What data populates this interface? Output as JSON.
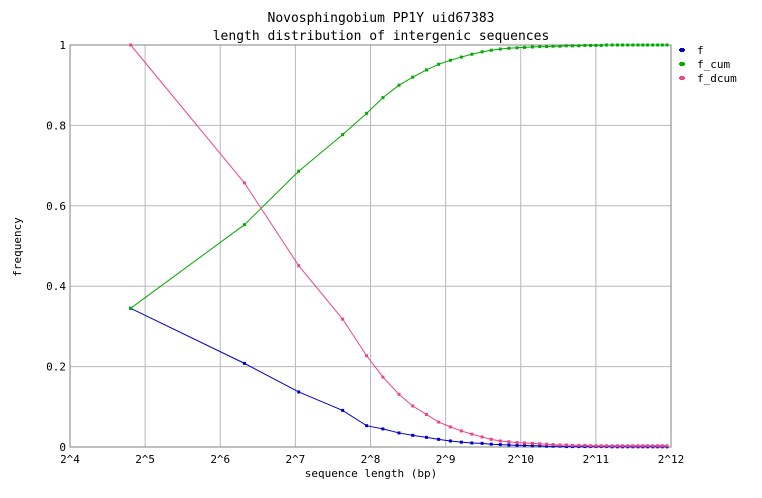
{
  "chart_data": {
    "type": "line",
    "title": "Novosphingobium PP1Y uid67383",
    "subtitle": "length distribution of intergenic sequences",
    "xlabel": "sequence length (bp)",
    "ylabel": "frequency",
    "x_scale": "log2",
    "xlim": [
      16,
      4096
    ],
    "ylim": [
      0,
      1
    ],
    "grid": true,
    "legend_position": "right",
    "x_ticks": [
      {
        "value": 16,
        "label": "2^4"
      },
      {
        "value": 32,
        "label": "2^5"
      },
      {
        "value": 64,
        "label": "2^6"
      },
      {
        "value": 128,
        "label": "2^7"
      },
      {
        "value": 256,
        "label": "2^8"
      },
      {
        "value": 512,
        "label": "2^9"
      },
      {
        "value": 1024,
        "label": "2^10"
      },
      {
        "value": 2048,
        "label": "2^11"
      },
      {
        "value": 4096,
        "label": "2^12"
      }
    ],
    "y_ticks": [
      {
        "value": 0,
        "label": "0"
      },
      {
        "value": 0.2,
        "label": "0.2"
      },
      {
        "value": 0.4,
        "label": "0.4"
      },
      {
        "value": 0.6,
        "label": "0.6"
      },
      {
        "value": 0.8,
        "label": "0.8"
      },
      {
        "value": 1,
        "label": "1"
      }
    ],
    "series": [
      {
        "name": "f",
        "color": "#0000cc",
        "points": [
          [
            28,
            0.345
          ],
          [
            80,
            0.208
          ],
          [
            132,
            0.137
          ],
          [
            198,
            0.091
          ],
          [
            247,
            0.053
          ],
          [
            287,
            0.045
          ],
          [
            333,
            0.035
          ],
          [
            378,
            0.029
          ],
          [
            429,
            0.024
          ],
          [
            480,
            0.019
          ],
          [
            535,
            0.015
          ],
          [
            592,
            0.012
          ],
          [
            652,
            0.01
          ],
          [
            717,
            0.009
          ],
          [
            780,
            0.007
          ],
          [
            848,
            0.006
          ],
          [
            918,
            0.005
          ],
          [
            990,
            0.004
          ],
          [
            1060,
            0.004
          ],
          [
            1140,
            0.003
          ],
          [
            1220,
            0.003
          ],
          [
            1300,
            0.002
          ],
          [
            1380,
            0.002
          ],
          [
            1470,
            0.002
          ],
          [
            1560,
            0.001
          ],
          [
            1650,
            0.001
          ],
          [
            1750,
            0.001
          ],
          [
            1850,
            0.001
          ],
          [
            1950,
            0.001
          ],
          [
            2050,
            0.001
          ],
          [
            2150,
            0.001
          ],
          [
            2260,
            0.001
          ],
          [
            2380,
            0.0005
          ],
          [
            2500,
            0.0005
          ],
          [
            2620,
            0.0005
          ],
          [
            2750,
            0.0005
          ],
          [
            2880,
            0.0005
          ],
          [
            3020,
            0.0005
          ],
          [
            3160,
            0.0005
          ],
          [
            3300,
            0.0005
          ],
          [
            3460,
            0.0005
          ],
          [
            3620,
            0.0005
          ],
          [
            3780,
            0.0005
          ],
          [
            3950,
            0.0005
          ]
        ]
      },
      {
        "name": "f_cum",
        "color": "#00aa00",
        "points": [
          [
            28,
            0.345
          ],
          [
            80,
            0.553
          ],
          [
            132,
            0.686
          ],
          [
            198,
            0.777
          ],
          [
            247,
            0.83
          ],
          [
            287,
            0.869
          ],
          [
            333,
            0.9
          ],
          [
            378,
            0.92
          ],
          [
            429,
            0.938
          ],
          [
            480,
            0.952
          ],
          [
            535,
            0.962
          ],
          [
            592,
            0.97
          ],
          [
            652,
            0.977
          ],
          [
            717,
            0.983
          ],
          [
            780,
            0.987
          ],
          [
            848,
            0.99
          ],
          [
            918,
            0.992
          ],
          [
            990,
            0.993
          ],
          [
            1060,
            0.994
          ],
          [
            1140,
            0.995
          ],
          [
            1220,
            0.996
          ],
          [
            1300,
            0.996
          ],
          [
            1380,
            0.997
          ],
          [
            1470,
            0.997
          ],
          [
            1560,
            0.998
          ],
          [
            1650,
            0.998
          ],
          [
            1750,
            0.998
          ],
          [
            1850,
            0.999
          ],
          [
            1950,
            0.999
          ],
          [
            2050,
            0.999
          ],
          [
            2150,
            0.999
          ],
          [
            2260,
            1.0
          ],
          [
            2380,
            1.0
          ],
          [
            2500,
            1.0
          ],
          [
            2620,
            1.0
          ],
          [
            2750,
            1.0
          ],
          [
            2880,
            1.0
          ],
          [
            3020,
            1.0
          ],
          [
            3160,
            1.0
          ],
          [
            3300,
            1.0
          ],
          [
            3460,
            1.0
          ],
          [
            3620,
            1.0
          ],
          [
            3780,
            1.0
          ],
          [
            3950,
            1.0
          ]
        ]
      },
      {
        "name": "f_dcum",
        "color": "#ee4488",
        "points": [
          [
            28,
            1.0
          ],
          [
            80,
            0.657
          ],
          [
            132,
            0.451
          ],
          [
            198,
            0.318
          ],
          [
            247,
            0.227
          ],
          [
            287,
            0.174
          ],
          [
            333,
            0.131
          ],
          [
            378,
            0.102
          ],
          [
            429,
            0.081
          ],
          [
            480,
            0.062
          ],
          [
            535,
            0.05
          ],
          [
            592,
            0.04
          ],
          [
            652,
            0.032
          ],
          [
            717,
            0.025
          ],
          [
            780,
            0.019
          ],
          [
            848,
            0.015
          ],
          [
            918,
            0.013
          ],
          [
            990,
            0.011
          ],
          [
            1060,
            0.01
          ],
          [
            1140,
            0.009
          ],
          [
            1220,
            0.008
          ],
          [
            1300,
            0.007
          ],
          [
            1380,
            0.006
          ],
          [
            1470,
            0.005
          ],
          [
            1560,
            0.005
          ],
          [
            1650,
            0.004
          ],
          [
            1750,
            0.004
          ],
          [
            1850,
            0.004
          ],
          [
            1950,
            0.003
          ],
          [
            2050,
            0.003
          ],
          [
            2150,
            0.003
          ],
          [
            2260,
            0.003
          ],
          [
            2380,
            0.003
          ],
          [
            2500,
            0.003
          ],
          [
            2620,
            0.003
          ],
          [
            2750,
            0.003
          ],
          [
            2880,
            0.003
          ],
          [
            3020,
            0.003
          ],
          [
            3160,
            0.003
          ],
          [
            3300,
            0.003
          ],
          [
            3460,
            0.003
          ],
          [
            3620,
            0.003
          ],
          [
            3780,
            0.003
          ],
          [
            3950,
            0.003
          ]
        ]
      }
    ]
  }
}
